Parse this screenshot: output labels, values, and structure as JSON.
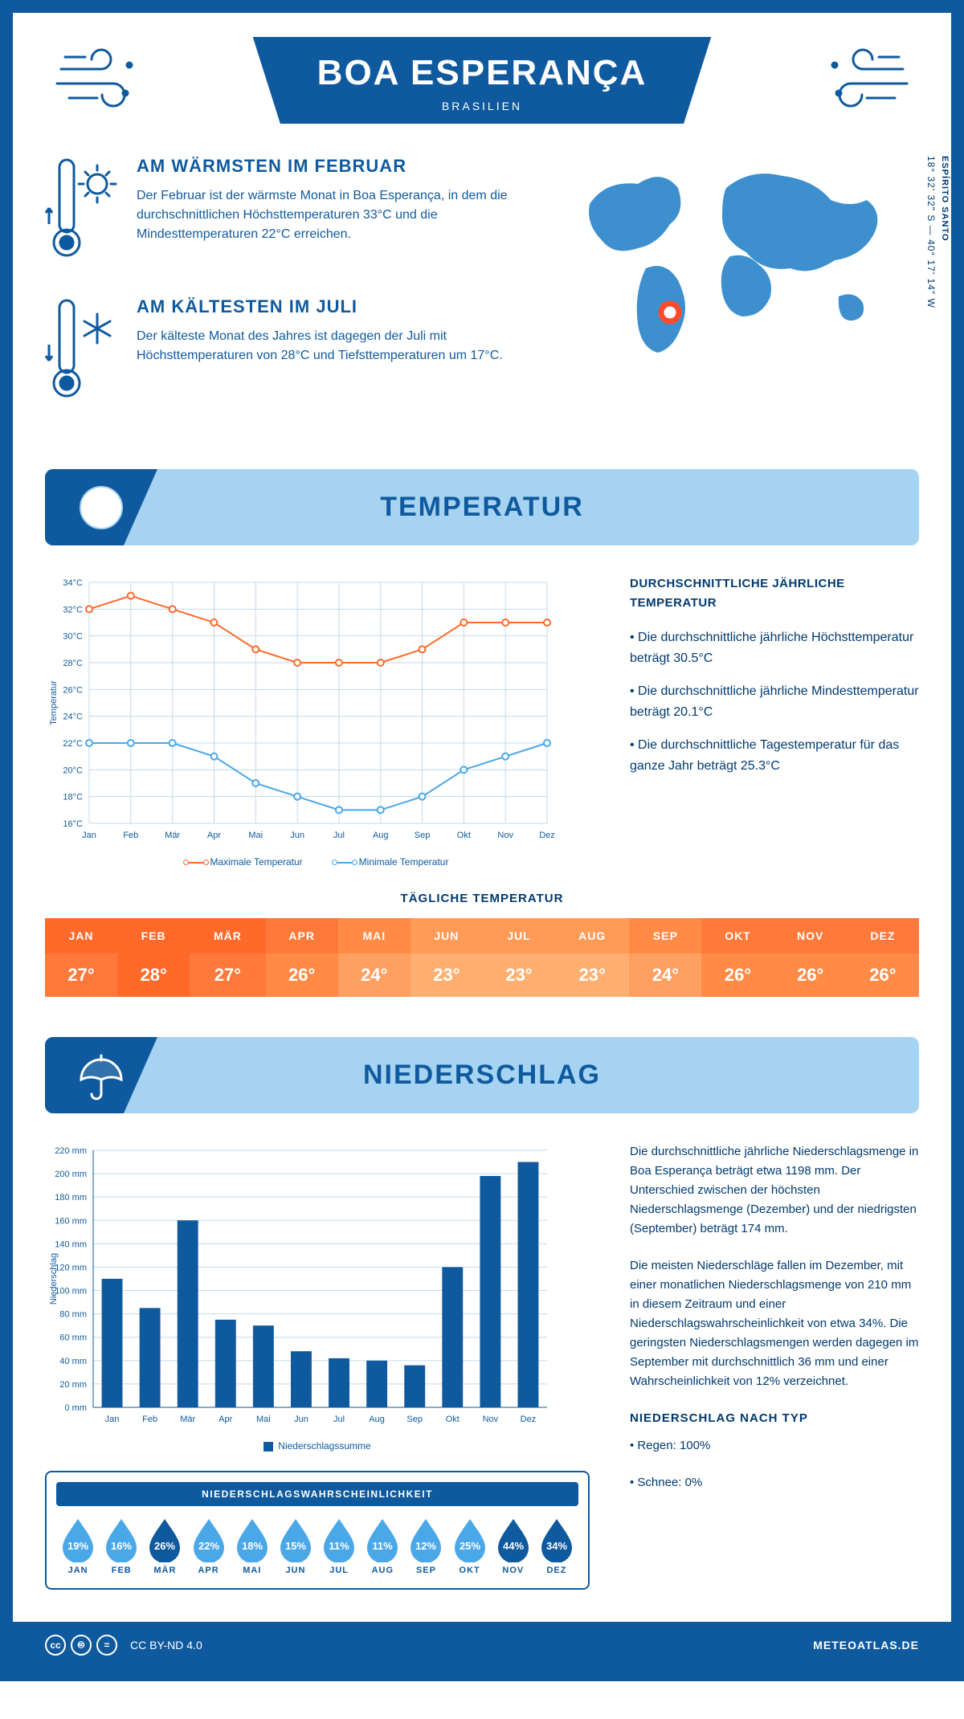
{
  "header": {
    "city": "BOA ESPERANÇA",
    "country": "BRASILIEN"
  },
  "coords": "18° 32' 32\" S — 40° 17' 14\" W",
  "region": "ESPÍRITO SANTO",
  "warm": {
    "title": "AM WÄRMSTEN IM FEBRUAR",
    "text": "Der Februar ist der wärmste Monat in Boa Esperança, in dem die durchschnittlichen Höchsttemperaturen 33°C und die Mindesttemperaturen 22°C erreichen."
  },
  "cold": {
    "title": "AM KÄLTESTEN IM JULI",
    "text": "Der kälteste Monat des Jahres ist dagegen der Juli mit Höchsttemperaturen von 28°C und Tiefsttemperaturen um 17°C."
  },
  "temp_section": {
    "title": "TEMPERATUR",
    "notes_title": "DURCHSCHNITTLICHE JÄHRLICHE TEMPERATUR",
    "note1": "• Die durchschnittliche jährliche Höchsttemperatur beträgt 30.5°C",
    "note2": "• Die durchschnittliche jährliche Mindesttemperatur beträgt 20.1°C",
    "note3": "• Die durchschnittliche Tagestemperatur für das ganze Jahr beträgt 25.3°C",
    "legend_max": "Maximale Temperatur",
    "legend_min": "Minimale Temperatur",
    "ylabel": "Temperatur",
    "chart": {
      "months": [
        "Jan",
        "Feb",
        "Mär",
        "Apr",
        "Mai",
        "Jun",
        "Jul",
        "Aug",
        "Sep",
        "Okt",
        "Nov",
        "Dez"
      ],
      "max": [
        32,
        33,
        32,
        31,
        29,
        28,
        28,
        28,
        29,
        31,
        31,
        31
      ],
      "min": [
        22,
        22,
        22,
        21,
        19,
        18,
        17,
        17,
        18,
        20,
        21,
        22
      ],
      "ymin": 16,
      "ymax": 34,
      "ystep": 2,
      "max_color": "#ff6a2b",
      "min_color": "#4aa8e8",
      "grid_color": "#c7d9e8",
      "bg": "#ffffff"
    }
  },
  "daily": {
    "title": "TÄGLICHE TEMPERATUR",
    "months": [
      "JAN",
      "FEB",
      "MÄR",
      "APR",
      "MAI",
      "JUN",
      "JUL",
      "AUG",
      "SEP",
      "OKT",
      "NOV",
      "DEZ"
    ],
    "values": [
      "27°",
      "28°",
      "27°",
      "26°",
      "24°",
      "23°",
      "23°",
      "23°",
      "24°",
      "26°",
      "26°",
      "26°"
    ],
    "colors_head": [
      "#ff6a2b",
      "#ff6a2b",
      "#ff6a2b",
      "#ff7a3a",
      "#ff8b47",
      "#ff9a57",
      "#ff9a57",
      "#ff9a57",
      "#ff8b47",
      "#ff7a3a",
      "#ff7a3a",
      "#ff7a3a"
    ],
    "colors_body": [
      "#ff7a3a",
      "#ff6a2b",
      "#ff7a3a",
      "#ff8b47",
      "#ffa061",
      "#ffb071",
      "#ffb071",
      "#ffb071",
      "#ffa061",
      "#ff8b47",
      "#ff8b47",
      "#ff8b47"
    ]
  },
  "precip_section": {
    "title": "NIEDERSCHLAG",
    "ylabel": "Niederschlag",
    "legend": "Niederschlagssumme",
    "chart": {
      "months": [
        "Jan",
        "Feb",
        "Mär",
        "Apr",
        "Mai",
        "Jun",
        "Jul",
        "Aug",
        "Sep",
        "Okt",
        "Nov",
        "Dez"
      ],
      "values": [
        110,
        85,
        160,
        75,
        70,
        48,
        42,
        40,
        36,
        120,
        198,
        210
      ],
      "ymin": 0,
      "ymax": 220,
      "ystep": 20,
      "bar_color": "#0f5a9e",
      "grid_color": "#c7d9e8"
    },
    "para1": "Die durchschnittliche jährliche Niederschlagsmenge in Boa Esperança beträgt etwa 1198 mm. Der Unterschied zwischen der höchsten Niederschlagsmenge (Dezember) und der niedrigsten (September) beträgt 174 mm.",
    "para2": "Die meisten Niederschläge fallen im Dezember, mit einer monatlichen Niederschlagsmenge von 210 mm in diesem Zeitraum und einer Niederschlagswahrscheinlichkeit von etwa 34%. Die geringsten Niederschlagsmengen werden dagegen im September mit durchschnittlich 36 mm und einer Wahrscheinlichkeit von 12% verzeichnet.",
    "type_title": "NIEDERSCHLAG NACH TYP",
    "type1": "• Regen: 100%",
    "type2": "• Schnee: 0%"
  },
  "prob": {
    "title": "NIEDERSCHLAGSWAHRSCHEINLICHKEIT",
    "months": [
      "JAN",
      "FEB",
      "MÄR",
      "APR",
      "MAI",
      "JUN",
      "JUL",
      "AUG",
      "SEP",
      "OKT",
      "NOV",
      "DEZ"
    ],
    "pct": [
      "19%",
      "16%",
      "26%",
      "22%",
      "18%",
      "15%",
      "11%",
      "11%",
      "12%",
      "25%",
      "44%",
      "34%"
    ],
    "dark": [
      false,
      false,
      true,
      false,
      false,
      false,
      false,
      false,
      false,
      false,
      true,
      true
    ],
    "light_color": "#4aa8e8",
    "dark_color": "#0f5a9e"
  },
  "footer": {
    "license": "CC BY-ND 4.0",
    "site": "METEOATLAS.DE"
  }
}
